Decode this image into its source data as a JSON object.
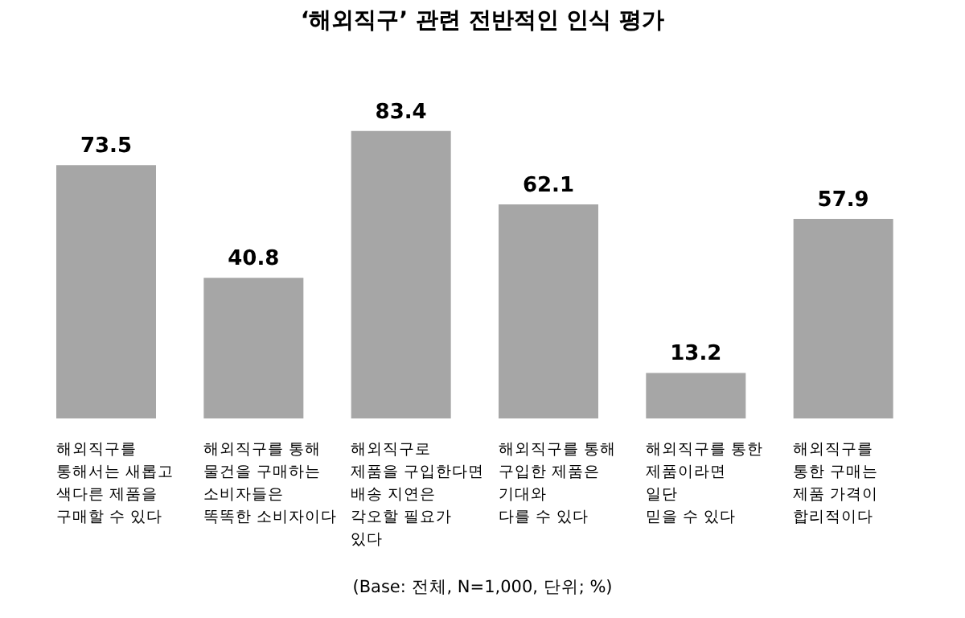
{
  "chart_data": {
    "type": "bar",
    "title": "‘해외직구’ 관련 전반적인 인식 평가",
    "categories": [
      "해외직구를\n통해서는 새롭고\n색다른 제품을\n구매할 수 있다",
      "해외직구를 통해\n물건을 구매하는\n소비자들은\n똑똑한 소비자이다",
      "해외직구로\n제품을 구입한다면\n배송 지연은\n각오할 필요가\n있다",
      "해외직구를 통해\n구입한 제품은\n기대와\n다를 수 있다",
      "해외직구를 통한\n제품이라면\n일단\n믿을 수 있다",
      "해외직구를\n통한 구매는\n제품 가격이\n합리적이다"
    ],
    "values": [
      73.5,
      40.8,
      83.4,
      62.1,
      13.2,
      57.9
    ],
    "color": "#a6a6a6",
    "data_labels": true,
    "grid": false,
    "legend": false,
    "annotations": [
      "(Base: 전체, N=1,000, 단위; %)"
    ]
  }
}
